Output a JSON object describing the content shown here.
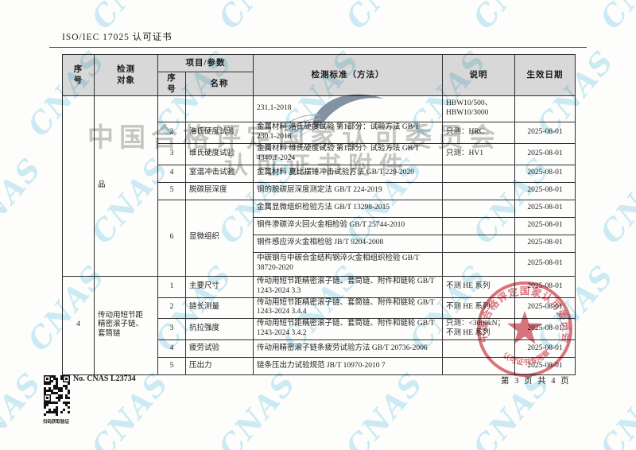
{
  "header": {
    "title": "ISO/IEC 17025 认可证书"
  },
  "footer": {
    "cert_no": "No. CNAS L23734",
    "page_info": "第 3 页 共 4 页",
    "qr_caption": "扫码获取验证"
  },
  "watermark": {
    "tile_text": "CNAS",
    "tile_color": "#a4ddf1",
    "line1": "中国合格评定国家认可委员会",
    "line2": "认可证书附件"
  },
  "stamp": {
    "ring_text": "中国合格评定国家认可委员会",
    "bottom_text": "认可证书专用章",
    "color": "#cb3340"
  },
  "table": {
    "headers": {
      "col_no": "序\n号",
      "col_object": "检测\n对象",
      "col_item_group": "项目/参数",
      "col_item_no": "序\n号",
      "col_item_name": "名称",
      "col_standard": "检测标准（方法）",
      "col_note": "说明",
      "col_date": "生效日期"
    },
    "sections": [
      {
        "no": "",
        "object": "品",
        "rows": [
          {
            "no": "",
            "name": "",
            "standard": "231.1-2018",
            "note": "HBW10/500、\nHBW10/3000",
            "date": ""
          },
          {
            "no": "2",
            "name": "洛氏硬度试验",
            "standard": "金属材料 洛氏硬度试验 第1部分：试验方法 GB/T\n230.1-2018",
            "note": "只测：HRC",
            "date": "2025-08-01"
          },
          {
            "no": "3",
            "name": "维氏硬度试验",
            "standard": "金属材料 维氏硬度试验 第1部分：试验方法 GB/T\n4340.1-2024",
            "note": "只测：HV1",
            "date": "2025-08-01"
          },
          {
            "no": "4",
            "name": "室温冲击试验",
            "standard": "金属材料 夏比摆锤冲击试验方法 GB/T 229-2020",
            "note": "",
            "date": "2025-08-01"
          },
          {
            "no": "5",
            "name": "脱碳层深度",
            "standard": "钢的脱碳层深度测定法 GB/T 224-2019",
            "note": "",
            "date": "2025-08-01"
          },
          {
            "no": "6",
            "name": "显微组织",
            "standard": "金属显微组织检验方法 GB/T 13298-2015",
            "note": "",
            "date": "2025-08-01"
          },
          {
            "standard": "钢件渗碳淬火回火金相检验 GB/T 25744-2010",
            "note": "",
            "date": "2025-08-01"
          },
          {
            "standard": "钢件感应淬火金相检验 JB/T 9204-2008",
            "note": "",
            "date": "2025-08-01"
          },
          {
            "standard": "中碳钢与中碳合金结构钢淬火金相组织检验 GB/T\n38720-2020",
            "note": "",
            "date": "2025-08-01"
          }
        ]
      },
      {
        "no": "4",
        "object": "传动用短节距\n精密滚子链、\n套筒链",
        "rows": [
          {
            "no": "1",
            "name": "主要尺寸",
            "standard": "传动用短节距精密滚子链、套筒链、附件和链轮 GB/T\n1243-2024 3.3",
            "note": "不测 HE 系列",
            "date": "2025-08-01"
          },
          {
            "no": "2",
            "name": "链长测量",
            "standard": "传动用短节距精密滚子链、套筒链、附件和链轮 GB/T\n1243-2024 3.4.4",
            "note": "不测 HE 系列",
            "date": "2025-08-01"
          },
          {
            "no": "3",
            "name": "抗拉强度",
            "standard": "传动用短节距精密滚子链、套筒链、附件和链轮 GB/T\n1243-2024 3.4.2",
            "note": "只测：<3000kN；\n不测 HE 系列",
            "date": "2025-08-01"
          },
          {
            "no": "4",
            "name": "疲劳试验",
            "standard": "传动用精密滚子链条疲劳试验方法 GB/T 20736-2006",
            "note": "",
            "date": "2025-08-01"
          },
          {
            "no": "5",
            "name": "压出力",
            "standard": "链条压出力试验规范 JB/T 10970-2010 7",
            "note": "",
            "date": "2025-08-01"
          }
        ]
      }
    ]
  }
}
